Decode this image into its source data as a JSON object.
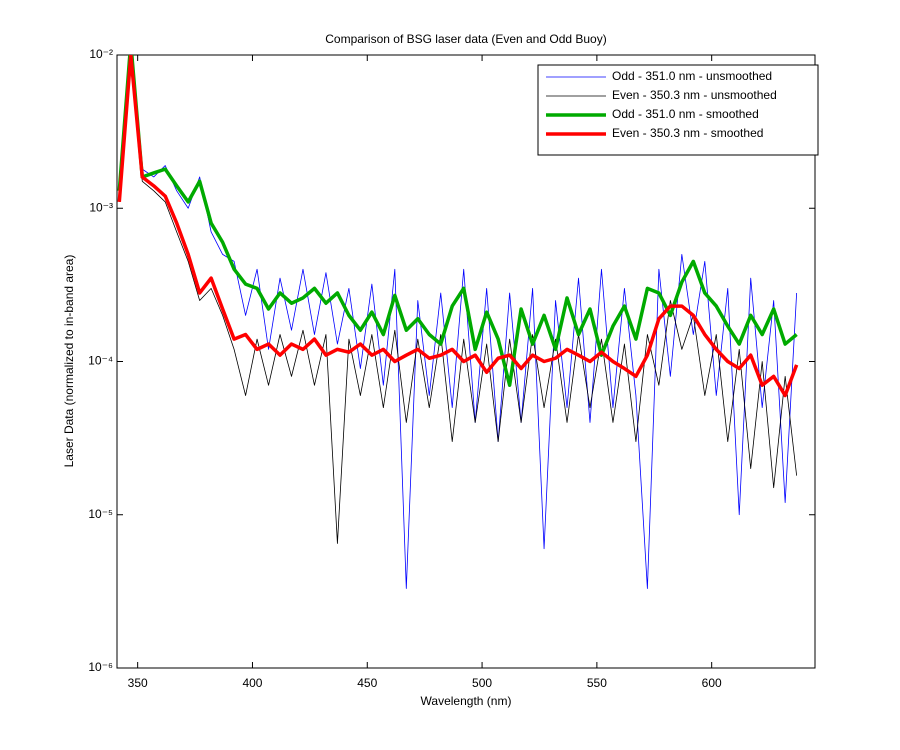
{
  "chart_data": {
    "type": "line",
    "title": "Comparison of BSG laser data (Even and Odd Buoy)",
    "xlabel": "Wavelength (nm)",
    "ylabel": "Laser Data (normalized to in-band area)",
    "yscale": "log",
    "legend": "northeast",
    "xlim": [
      341,
      645
    ],
    "ylim": [
      1e-06,
      0.01
    ],
    "xticks": [
      350,
      400,
      450,
      500,
      550,
      600
    ],
    "yticks": [
      {
        "value": 1e-06,
        "label": "10⁻⁶"
      },
      {
        "value": 1e-05,
        "label": "10⁻⁵"
      },
      {
        "value": 0.0001,
        "label": "10⁻⁴"
      },
      {
        "value": 0.001,
        "label": "10⁻³"
      },
      {
        "value": 0.01,
        "label": "10⁻²"
      }
    ],
    "x": [
      342,
      347,
      352,
      357,
      362,
      367,
      372,
      377,
      382,
      387,
      392,
      397,
      402,
      407,
      412,
      417,
      422,
      427,
      432,
      437,
      442,
      447,
      452,
      457,
      462,
      467,
      472,
      477,
      482,
      487,
      492,
      497,
      502,
      507,
      512,
      517,
      522,
      527,
      532,
      537,
      542,
      547,
      552,
      557,
      562,
      567,
      572,
      577,
      582,
      587,
      592,
      597,
      602,
      607,
      612,
      617,
      622,
      627,
      632,
      637
    ],
    "series": [
      {
        "name": "Odd - 351.0 nm - unsmoothed",
        "color": "#0000ff",
        "width": 0.8,
        "values": [
          0.0012,
          0.01,
          0.0018,
          0.0016,
          0.0019,
          0.0013,
          0.001,
          0.0016,
          0.0007,
          0.0005,
          0.00045,
          0.0002,
          0.0004,
          0.00012,
          0.00035,
          0.00016,
          0.0004,
          0.00015,
          0.00038,
          0.00013,
          0.0003,
          9e-05,
          0.00032,
          7e-05,
          0.0004,
          3.3e-06,
          0.00025,
          6e-05,
          0.00028,
          5e-05,
          0.0004,
          4e-05,
          0.0003,
          3e-05,
          0.00028,
          4e-05,
          0.0003,
          6e-06,
          0.00025,
          5e-05,
          0.00035,
          4e-05,
          0.0004,
          5e-05,
          0.0003,
          6e-05,
          3.3e-06,
          0.0004,
          8e-05,
          0.0005,
          0.00015,
          0.00045,
          6e-05,
          0.0003,
          1e-05,
          0.00035,
          5e-05,
          0.00025,
          1.2e-05,
          0.00028
        ]
      },
      {
        "name": "Even - 350.3 nm - unsmoothed",
        "color": "#000000",
        "width": 0.8,
        "values": [
          0.0011,
          0.01,
          0.0015,
          0.0013,
          0.0011,
          0.0007,
          0.00045,
          0.00025,
          0.0003,
          0.0002,
          0.00012,
          6e-05,
          0.00014,
          7e-05,
          0.00015,
          8e-05,
          0.00016,
          7e-05,
          0.00015,
          6.5e-06,
          0.00014,
          6e-05,
          0.00015,
          5e-05,
          0.00016,
          4e-05,
          0.00014,
          5e-05,
          0.00015,
          3e-05,
          0.00014,
          4e-05,
          0.00013,
          3e-05,
          0.00014,
          4e-05,
          0.00015,
          5e-05,
          0.00014,
          4e-05,
          0.00015,
          5e-05,
          0.00014,
          4e-05,
          0.00013,
          3e-05,
          0.00015,
          7e-05,
          0.00025,
          0.00012,
          0.0002,
          6e-05,
          0.00015,
          3e-05,
          0.00012,
          2e-05,
          0.0001,
          1.5e-05,
          8e-05,
          1.8e-05
        ]
      },
      {
        "name": "Odd - 351.0 nm - smoothed",
        "color": "#00aa00",
        "width": 3.5,
        "values": [
          0.0013,
          0.012,
          0.0016,
          0.0017,
          0.0018,
          0.0014,
          0.0011,
          0.0015,
          0.0008,
          0.0006,
          0.0004,
          0.00032,
          0.0003,
          0.00022,
          0.00028,
          0.00024,
          0.00026,
          0.0003,
          0.00024,
          0.00028,
          0.0002,
          0.00016,
          0.00021,
          0.00015,
          0.00027,
          0.00016,
          0.00019,
          0.00015,
          0.00013,
          0.00023,
          0.0003,
          0.00012,
          0.00021,
          0.00014,
          7e-05,
          0.00022,
          0.00013,
          0.0002,
          0.00012,
          0.00026,
          0.00015,
          0.00022,
          0.00011,
          0.00017,
          0.00023,
          0.00014,
          0.0003,
          0.00028,
          0.0002,
          0.00033,
          0.00045,
          0.00028,
          0.00023,
          0.00017,
          0.00013,
          0.0002,
          0.00015,
          0.00022,
          0.00013,
          0.00015
        ]
      },
      {
        "name": "Even - 350.3 nm - smoothed",
        "color": "#ff0000",
        "width": 3.5,
        "values": [
          0.0011,
          0.01,
          0.0016,
          0.0014,
          0.0012,
          0.0008,
          0.0005,
          0.00028,
          0.00035,
          0.00022,
          0.00014,
          0.00015,
          0.00012,
          0.00013,
          0.00011,
          0.00013,
          0.00012,
          0.00014,
          0.00011,
          0.00012,
          0.000115,
          0.00013,
          0.00011,
          0.00012,
          0.0001,
          0.00011,
          0.00012,
          0.000105,
          0.00011,
          0.00012,
          0.0001,
          0.00011,
          8.5e-05,
          0.000105,
          0.00011,
          9e-05,
          0.00011,
          0.0001,
          0.000105,
          0.00012,
          0.00011,
          0.0001,
          0.000115,
          0.0001,
          9e-05,
          8e-05,
          0.00011,
          0.00019,
          0.00023,
          0.00023,
          0.0002,
          0.00015,
          0.00012,
          0.0001,
          9e-05,
          0.00011,
          7e-05,
          8e-05,
          6e-05,
          9.5e-05
        ]
      }
    ]
  }
}
